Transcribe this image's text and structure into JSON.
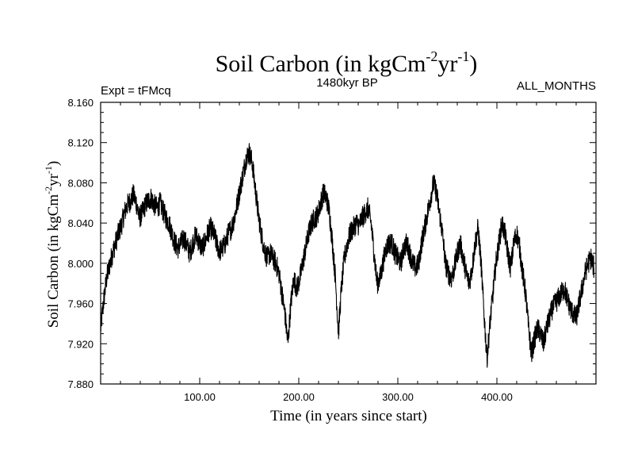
{
  "chart_data": {
    "type": "line",
    "title": "Soil Carbon (in kgCm",
    "title_sup1": "-2",
    "title_mid": "yr",
    "title_sup2": "-1",
    "title_end": ")",
    "subtitle": "1480kyr BP",
    "experiment_label": "Expt = tFMcq",
    "season_label": "ALL_MONTHS",
    "xlabel": "Time (in years since start)",
    "ylabel": "Soil Carbon (in kgCm",
    "ylabel_sup1": "-2",
    "ylabel_mid": "yr",
    "ylabel_sup2": "-1",
    "ylabel_end": ")",
    "xlim": [
      0,
      500
    ],
    "ylim": [
      7.88,
      8.16
    ],
    "x_ticks": [
      100,
      200,
      300,
      400
    ],
    "x_tick_labels": [
      "100.00",
      "200.00",
      "300.00",
      "400.00"
    ],
    "y_ticks": [
      7.88,
      7.92,
      7.96,
      8.0,
      8.04,
      8.08,
      8.12,
      8.16
    ],
    "y_tick_labels": [
      "7.880",
      "7.920",
      "7.960",
      "8.000",
      "8.040",
      "8.080",
      "8.120",
      "8.160"
    ],
    "line_color": "#000000",
    "series": [
      {
        "name": "Soil Carbon",
        "x": [
          0,
          3,
          6,
          9,
          12,
          15,
          18,
          21,
          24,
          27,
          30,
          33,
          36,
          39,
          42,
          45,
          48,
          51,
          54,
          57,
          60,
          63,
          66,
          69,
          72,
          75,
          78,
          81,
          84,
          87,
          90,
          93,
          96,
          99,
          102,
          105,
          108,
          111,
          114,
          117,
          120,
          123,
          126,
          129,
          132,
          135,
          138,
          141,
          144,
          147,
          150,
          153,
          156,
          159,
          162,
          165,
          168,
          171,
          174,
          177,
          180,
          183,
          186,
          189,
          192,
          195,
          198,
          201,
          204,
          207,
          210,
          213,
          216,
          219,
          222,
          225,
          228,
          231,
          234,
          237,
          240,
          243,
          246,
          249,
          252,
          255,
          258,
          261,
          264,
          267,
          270,
          273,
          276,
          279,
          282,
          285,
          288,
          291,
          294,
          297,
          300,
          303,
          306,
          309,
          312,
          315,
          318,
          321,
          324,
          327,
          330,
          333,
          336,
          339,
          342,
          345,
          348,
          351,
          354,
          357,
          360,
          363,
          366,
          369,
          372,
          375,
          378,
          381,
          384,
          387,
          390,
          393,
          396,
          399,
          402,
          405,
          408,
          411,
          414,
          417,
          420,
          423,
          426,
          429,
          432,
          435,
          438,
          441,
          444,
          447,
          450,
          453,
          456,
          459,
          462,
          465,
          468,
          471,
          474,
          477,
          480,
          483,
          486,
          489,
          492,
          495,
          498
        ],
        "values": [
          7.935,
          7.962,
          7.985,
          7.998,
          8.01,
          8.02,
          8.03,
          8.038,
          8.05,
          8.058,
          8.062,
          8.068,
          8.06,
          8.045,
          8.05,
          8.058,
          8.062,
          8.065,
          8.058,
          8.055,
          8.06,
          8.052,
          8.045,
          8.04,
          8.03,
          8.02,
          8.015,
          8.02,
          8.025,
          8.018,
          8.01,
          8.02,
          8.028,
          8.022,
          8.015,
          8.02,
          8.03,
          8.035,
          8.03,
          8.02,
          8.012,
          8.015,
          8.02,
          8.03,
          8.035,
          8.045,
          8.06,
          8.075,
          8.09,
          8.105,
          8.11,
          8.1,
          8.075,
          8.05,
          8.03,
          8.015,
          8.005,
          8.01,
          8.005,
          8.0,
          7.99,
          7.97,
          7.95,
          7.92,
          7.96,
          7.985,
          7.975,
          7.985,
          8.0,
          8.015,
          8.03,
          8.04,
          8.045,
          8.048,
          8.06,
          8.07,
          8.065,
          8.05,
          8.02,
          7.985,
          7.93,
          7.975,
          8.005,
          8.02,
          8.03,
          8.035,
          8.04,
          8.038,
          8.045,
          8.05,
          8.055,
          8.04,
          8.01,
          7.98,
          7.985,
          8.0,
          8.015,
          8.02,
          8.02,
          8.01,
          8.005,
          8.0,
          8.015,
          8.02,
          8.01,
          8.0,
          7.995,
          8.0,
          8.02,
          8.035,
          8.05,
          8.065,
          8.08,
          8.07,
          8.05,
          8.03,
          8.0,
          7.99,
          7.985,
          7.995,
          8.01,
          8.02,
          8.005,
          7.99,
          7.98,
          7.995,
          8.02,
          8.035,
          8.0,
          7.95,
          7.905,
          7.94,
          7.97,
          8.0,
          8.02,
          8.04,
          8.03,
          8.01,
          7.995,
          8.02,
          8.03,
          8.015,
          7.99,
          7.97,
          7.935,
          7.91,
          7.925,
          7.935,
          7.93,
          7.92,
          7.935,
          7.945,
          7.955,
          7.96,
          7.965,
          7.97,
          7.975,
          7.965,
          7.955,
          7.95,
          7.945,
          7.96,
          7.975,
          7.99,
          8.0,
          8.005,
          7.995
        ]
      }
    ]
  }
}
